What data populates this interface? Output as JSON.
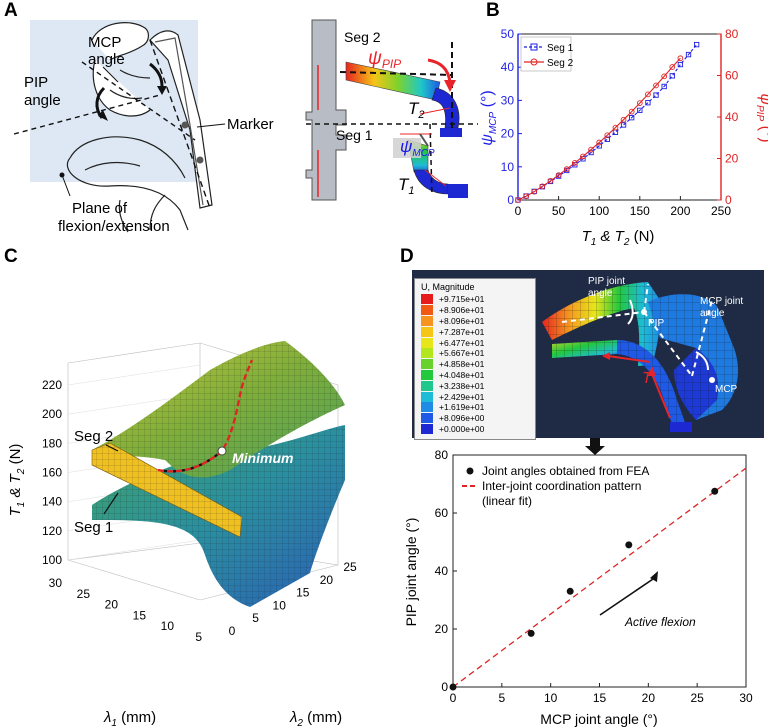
{
  "panels": {
    "A": "A",
    "B": "B",
    "C": "C",
    "D": "D"
  },
  "panelA": {
    "mcp_angle_line1": "MCP",
    "mcp_angle_line2": "angle",
    "pip_angle_line1": "PIP",
    "pip_angle_line2": "angle",
    "marker": "Marker",
    "plane_line1": "Plane of",
    "plane_line2": "flexion/extension",
    "seg2": "Seg 2",
    "seg1": "Seg 1",
    "psi_pip": "ψ",
    "psi_pip_sub": "PIP",
    "psi_mcp": "ψ",
    "psi_mcp_sub": "MCP",
    "t2": "T",
    "t2_sub": "2",
    "t1": "T",
    "t1_sub": "1",
    "colors": {
      "sky": "#dde8f4",
      "red": "#e8242a",
      "blue": "#1717e8"
    }
  },
  "chart_data": [
    {
      "type": "line",
      "panel": "B",
      "xlabel": "T",
      "xlabel_parts": [
        "T",
        "1",
        " & T",
        "2",
        " (N)"
      ],
      "ylabel_left": "ψMCP (°)",
      "ylabel_left_main": "ψ",
      "ylabel_left_sub": "MCP",
      "ylabel_left_unit": " (°)",
      "ylabel_right": "ψPIP (°)",
      "ylabel_right_main": "ψ",
      "ylabel_right_sub": "PIP",
      "ylabel_right_unit": " (°)",
      "xlim": [
        0,
        250
      ],
      "ylim_left": [
        0,
        50
      ],
      "ylim_right": [
        0,
        80
      ],
      "xticks": [
        "0",
        "50",
        "100",
        "150",
        "200",
        "250"
      ],
      "yticks_left": [
        "0",
        "10",
        "20",
        "30",
        "40",
        "50"
      ],
      "yticks_right": [
        "0",
        "20",
        "40",
        "60",
        "80"
      ],
      "legend": "top-left",
      "series": [
        {
          "name": "Seg 1",
          "axis": "left",
          "color": "#1f1fe6",
          "marker": "square",
          "x": [
            0,
            10,
            20,
            30,
            40,
            50,
            60,
            70,
            80,
            90,
            100,
            110,
            120,
            130,
            140,
            150,
            160,
            170,
            180,
            190,
            200,
            210,
            220
          ],
          "y": [
            0,
            1.2,
            2.6,
            4.0,
            5.6,
            7.2,
            8.9,
            10.6,
            12.4,
            14.3,
            16.3,
            18.3,
            20.4,
            22.6,
            24.8,
            27.0,
            29.3,
            31.6,
            34.2,
            37.4,
            40.8,
            43.8,
            46.8
          ]
        },
        {
          "name": "Seg 2",
          "axis": "right",
          "color": "#e02424",
          "marker": "circle",
          "x": [
            0,
            10,
            20,
            30,
            40,
            50,
            60,
            70,
            80,
            90,
            100,
            110,
            120,
            130,
            140,
            150,
            160,
            170,
            180,
            190,
            200
          ],
          "y": [
            0,
            1.8,
            4.0,
            6.6,
            9.2,
            12.0,
            14.9,
            17.9,
            21.0,
            24.3,
            27.7,
            31.2,
            34.9,
            38.7,
            42.6,
            46.7,
            50.9,
            55.2,
            59.6,
            64.1,
            68.3
          ]
        }
      ]
    },
    {
      "type": "surface",
      "panel": "C",
      "zlabel": "T1 & T2 (N)",
      "zlabel_parts": [
        "T",
        "1",
        " & T",
        "2",
        " (N)"
      ],
      "xlabel": "λ1 (mm)",
      "xlabel_main": "λ",
      "xlabel_sub": "1",
      "xlabel_unit": " (mm)",
      "ylabel": "λ2 (mm)",
      "ylabel_main": "λ",
      "ylabel_sub": "2",
      "ylabel_unit": " (mm)",
      "zticks": [
        "100",
        "120",
        "140",
        "160",
        "180",
        "200",
        "220"
      ],
      "xticks": [
        "30",
        "25",
        "20",
        "15",
        "10",
        "5"
      ],
      "yticks": [
        "0",
        "5",
        "10",
        "15",
        "20",
        "25"
      ],
      "labels": {
        "seg2": "Seg 2",
        "seg1": "Seg 1",
        "minimum": "Minimum"
      }
    },
    {
      "type": "scatter",
      "panel": "D",
      "xlabel": "MCP joint angle (°)",
      "ylabel": "PIP joint angle (°)",
      "xlim": [
        0,
        30
      ],
      "ylim": [
        0,
        80
      ],
      "xticks": [
        "0",
        "5",
        "10",
        "15",
        "20",
        "25",
        "30"
      ],
      "yticks": [
        "0",
        "20",
        "40",
        "60",
        "80"
      ],
      "legend": "top-left",
      "legend_entries": [
        "Joint angles obtained from FEA",
        "Inter-joint coordination pattern",
        "(linear fit)"
      ],
      "points": {
        "x": [
          0,
          8,
          12,
          18,
          26.8
        ],
        "y": [
          0,
          18.5,
          33,
          49,
          67.5
        ]
      },
      "fit_line": {
        "x": [
          0,
          30
        ],
        "y": [
          0,
          75.5
        ],
        "color": "#e02424"
      },
      "annotation": "Active flexion"
    }
  ],
  "panelD_fea": {
    "legend_title": "U, Magnitude",
    "legend_values": [
      "+9.715e+01",
      "+8.906e+01",
      "+8.096e+01",
      "+7.287e+01",
      "+6.477e+01",
      "+5.667e+01",
      "+4.858e+01",
      "+4.048e+01",
      "+3.238e+01",
      "+2.429e+01",
      "+1.619e+01",
      "+8.096e+00",
      "+0.000e+00"
    ],
    "legend_colors": [
      "#e61b1b",
      "#f05a14",
      "#f7941d",
      "#f5c518",
      "#e6e61b",
      "#b4e61e",
      "#66d22b",
      "#23c83c",
      "#1ec88c",
      "#1ebcd6",
      "#1e8ce6",
      "#1e5ae6",
      "#1e28d2"
    ],
    "pip_joint_line1": "PIP joint",
    "pip_joint_line2": "angle",
    "mcp_joint_line1": "MCP joint",
    "mcp_joint_line2": "angle",
    "pip": "PIP",
    "mcp": "MCP",
    "t": "T",
    "bg": "#1f2a44"
  }
}
